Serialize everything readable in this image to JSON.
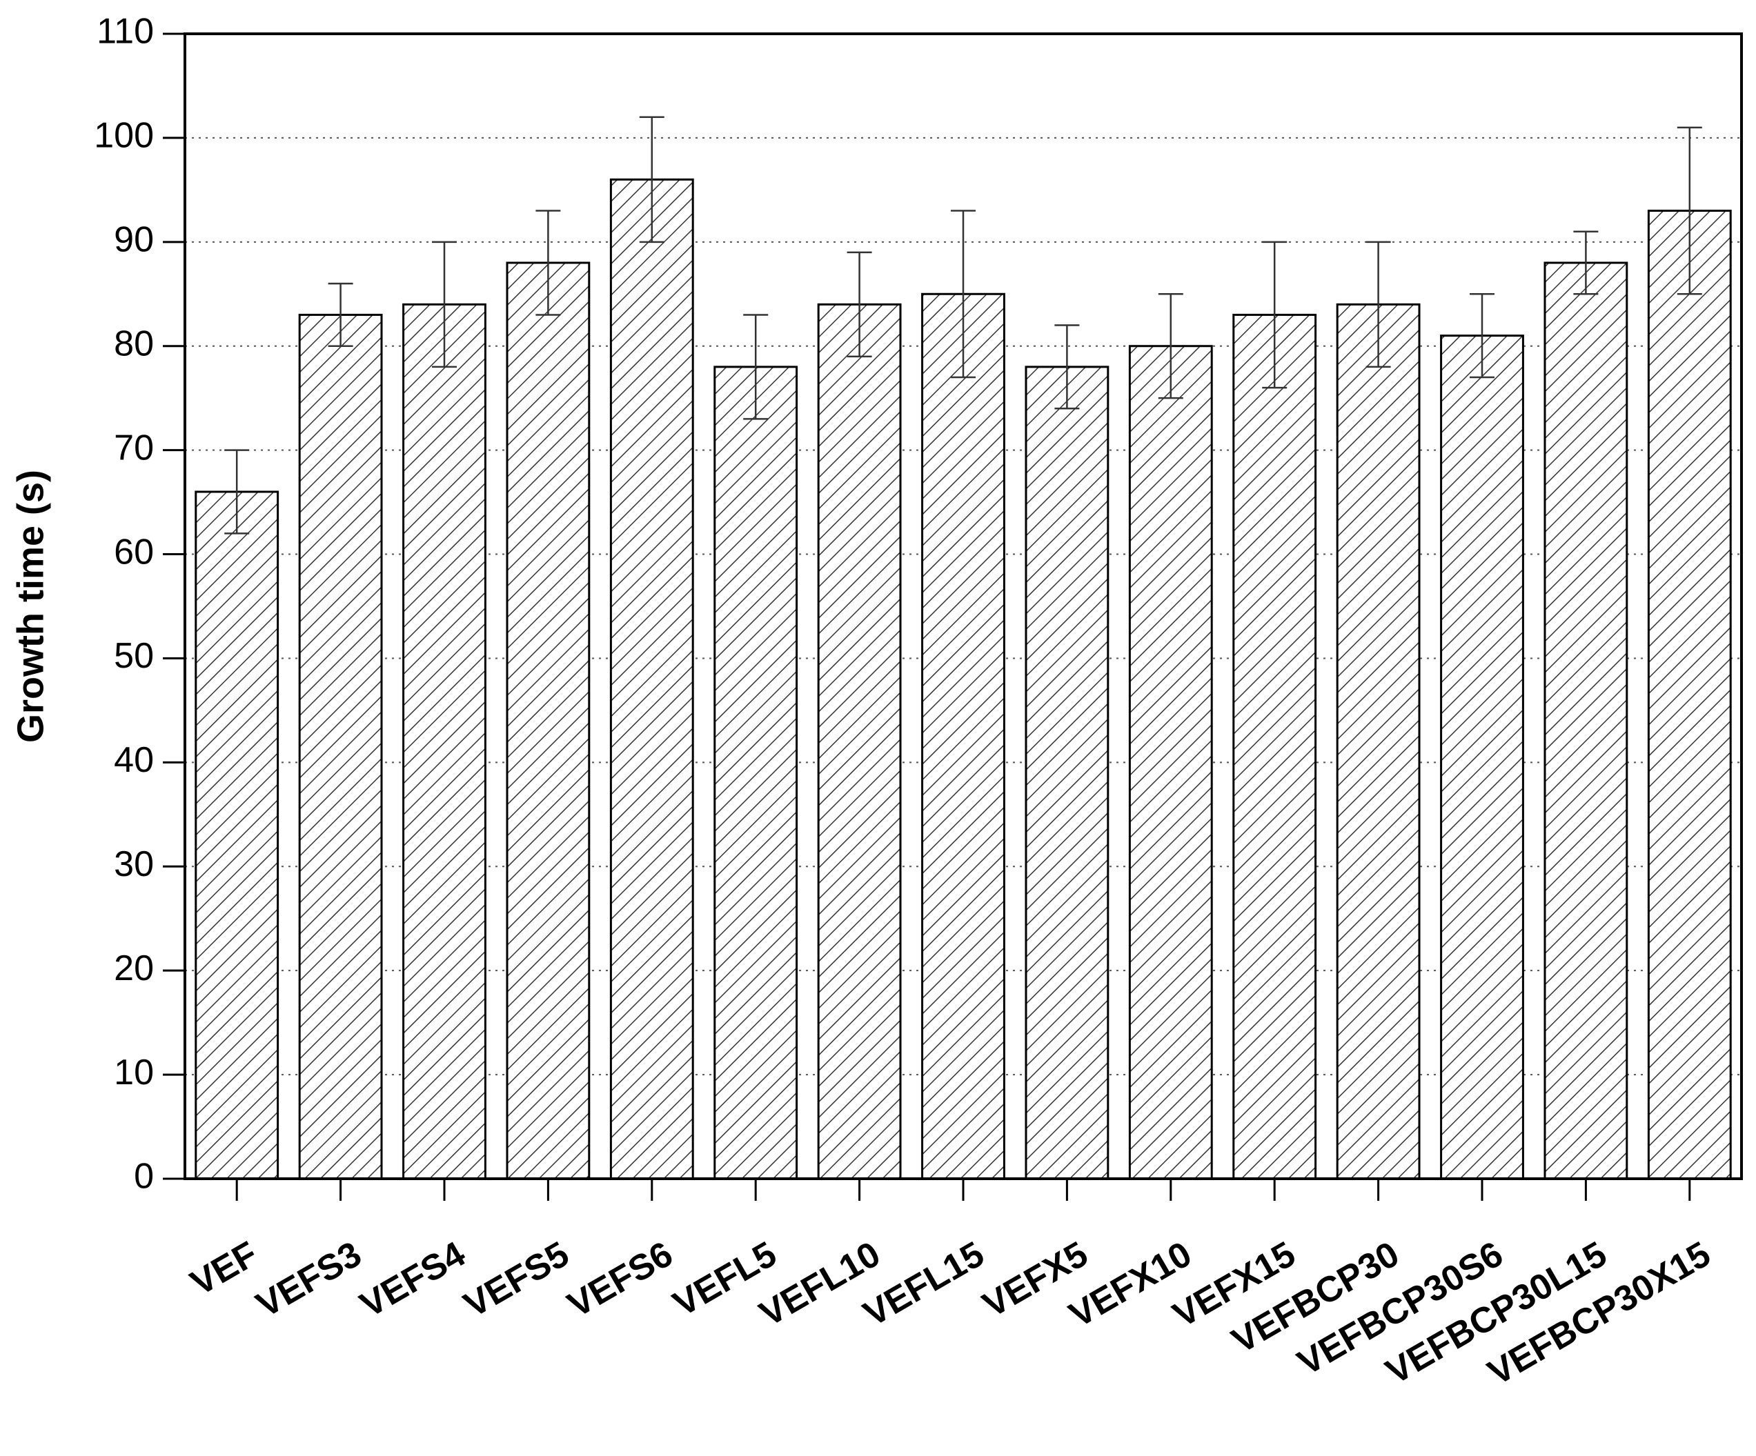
{
  "chart_data": {
    "type": "bar",
    "y_label": "Growth time (s)",
    "categories": [
      "VEF",
      "VEFS3",
      "VEFS4",
      "VEFS5",
      "VEFS6",
      "VEFL5",
      "VEFL10",
      "VEFL15",
      "VEFX5",
      "VEFX10",
      "VEFX15",
      "VEFBCP30",
      "VEFBCP30S6",
      "VEFBCP30L15",
      "VEFBCP30X15"
    ],
    "values": [
      66,
      83,
      84,
      88,
      96,
      78,
      84,
      85,
      78,
      80,
      83,
      84,
      81,
      88,
      93
    ],
    "errors": [
      4,
      3,
      6,
      5,
      6,
      5,
      5,
      8,
      4,
      5,
      7,
      6,
      4,
      3,
      8
    ],
    "color": "#333333",
    "ylim": [
      0,
      110
    ],
    "yticks": [
      0,
      10,
      20,
      30,
      40,
      50,
      60,
      70,
      80,
      90,
      100,
      110
    ],
    "grid": true
  }
}
